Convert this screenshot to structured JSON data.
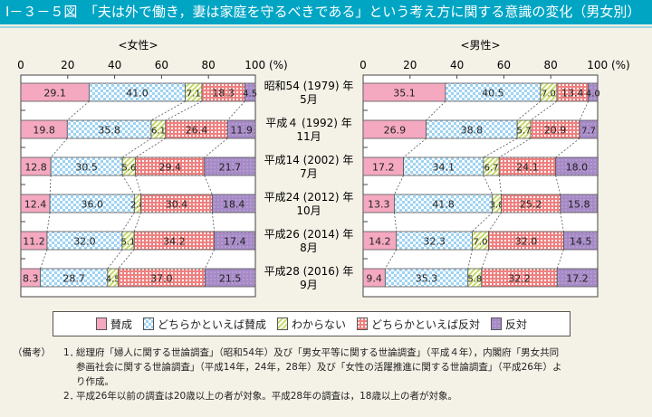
{
  "title": "Ⅰ－３－５図　「夫は外で働き，妻は家庭を守るべきである」という考え方に関する意識の変化（男女別）",
  "colors": {
    "title_bar": "#00a5c4",
    "agree": "#f4a9c0",
    "somewhat_agree": "#9fd3f2",
    "dont_know": "#c6da6c",
    "somewhat_disagree": "#ef8080",
    "disagree": "#a68ac6"
  },
  "chart_data": {
    "type": "bar",
    "stacked": true,
    "orientation": "horizontal",
    "xlim": [
      0,
      100
    ],
    "xticks": [
      "0",
      "20",
      "40",
      "60",
      "80",
      "100 (%)"
    ],
    "categories": [
      {
        "line1": "昭和54 (1979) 年",
        "line2": "5月"
      },
      {
        "line1": "平成４ (1992) 年",
        "line2": "11月"
      },
      {
        "line1": "平成14 (2002) 年",
        "line2": "7月"
      },
      {
        "line1": "平成24 (2012) 年",
        "line2": "10月"
      },
      {
        "line1": "平成26 (2014) 年",
        "line2": "8月"
      },
      {
        "line1": "平成28 (2016) 年",
        "line2": "9月"
      }
    ],
    "legend": [
      "賛成",
      "どちらかといえば賛成",
      "わからない",
      "どちらかといえば反対",
      "反対"
    ],
    "panels": [
      {
        "title": "<女性>",
        "series": [
          [
            29.1,
            41.0,
            7.1,
            18.3,
            4.5
          ],
          [
            19.8,
            35.8,
            6.1,
            26.4,
            11.9
          ],
          [
            12.8,
            30.5,
            5.6,
            29.4,
            21.7
          ],
          [
            12.4,
            36.0,
            2.8,
            30.4,
            18.4
          ],
          [
            11.2,
            32.0,
            5.1,
            34.2,
            17.4
          ],
          [
            8.3,
            28.7,
            4.5,
            37.0,
            21.5
          ]
        ]
      },
      {
        "title": "<男性>",
        "series": [
          [
            35.1,
            40.5,
            7.0,
            13.4,
            4.0
          ],
          [
            26.9,
            38.8,
            5.7,
            20.9,
            7.7
          ],
          [
            17.2,
            34.1,
            6.7,
            24.1,
            18.0
          ],
          [
            13.3,
            41.8,
            3.8,
            25.2,
            15.8
          ],
          [
            14.2,
            32.3,
            7.0,
            32.0,
            14.5
          ],
          [
            9.4,
            35.3,
            5.8,
            32.2,
            17.2
          ]
        ]
      }
    ]
  },
  "notes": {
    "head": "（備考）",
    "items": [
      {
        "num": "1．",
        "text1": "総理府「婦人に関する世論調査」（昭和54年）及び「男女平等に関する世論調査」（平成４年），内閣府「男女共同",
        "text2": "参画社会に関する世論調査」（平成14年，24年，28年）及び「女性の活躍推進に関する世論調査」（平成26年）よ",
        "text3": "り作成。"
      },
      {
        "num": "2．",
        "text1": "平成26年以前の調査は20歳以上の者が対象。平成28年の調査は，18歳以上の者が対象。"
      }
    ]
  }
}
